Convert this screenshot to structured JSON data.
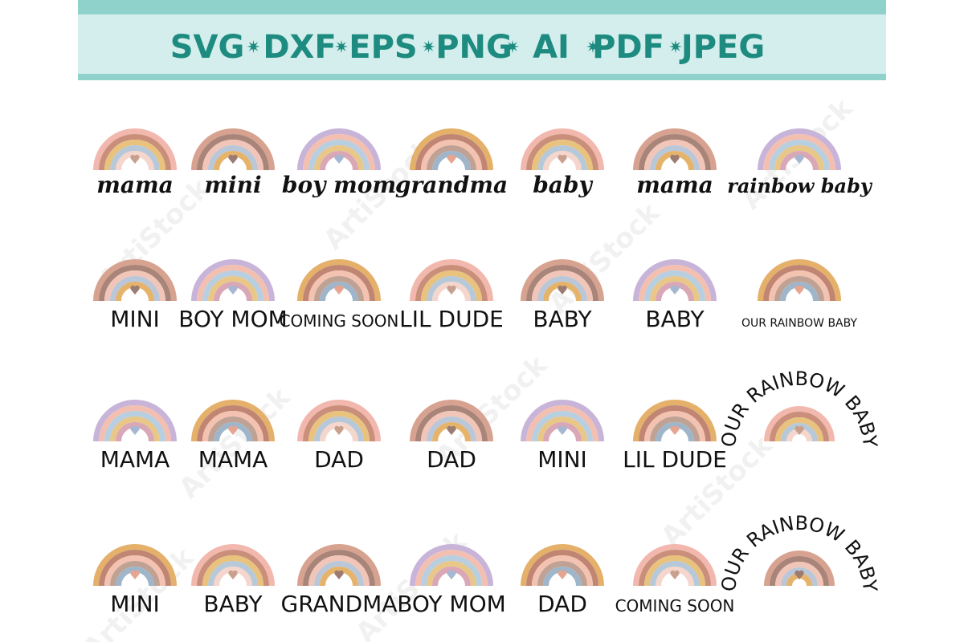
{
  "header": {
    "formats": [
      "SVG",
      "DXF",
      "EPS",
      "PNG",
      "AI",
      "PDF",
      "JPEG"
    ]
  },
  "watermark": "ArtiStock",
  "designs": [
    [
      "mama",
      "mini",
      "boy mom",
      "grandma",
      "baby",
      "mama",
      "rainbow baby"
    ],
    [
      "MINI",
      "BOY MOM",
      "COMING SOON",
      "LIL DUDE",
      "BABY",
      "BABY",
      "OUR RAINBOW BABY"
    ],
    [
      "MAMA",
      "MAMA",
      "DAD",
      "DAD",
      "MINI",
      "LIL DUDE",
      "OUR RAINBOW BABY"
    ],
    [
      "MINI",
      "BABY",
      "GRANDMA",
      "BOY MOM",
      "DAD",
      "COMING SOON",
      "OUR RAINBOW BABY"
    ]
  ]
}
